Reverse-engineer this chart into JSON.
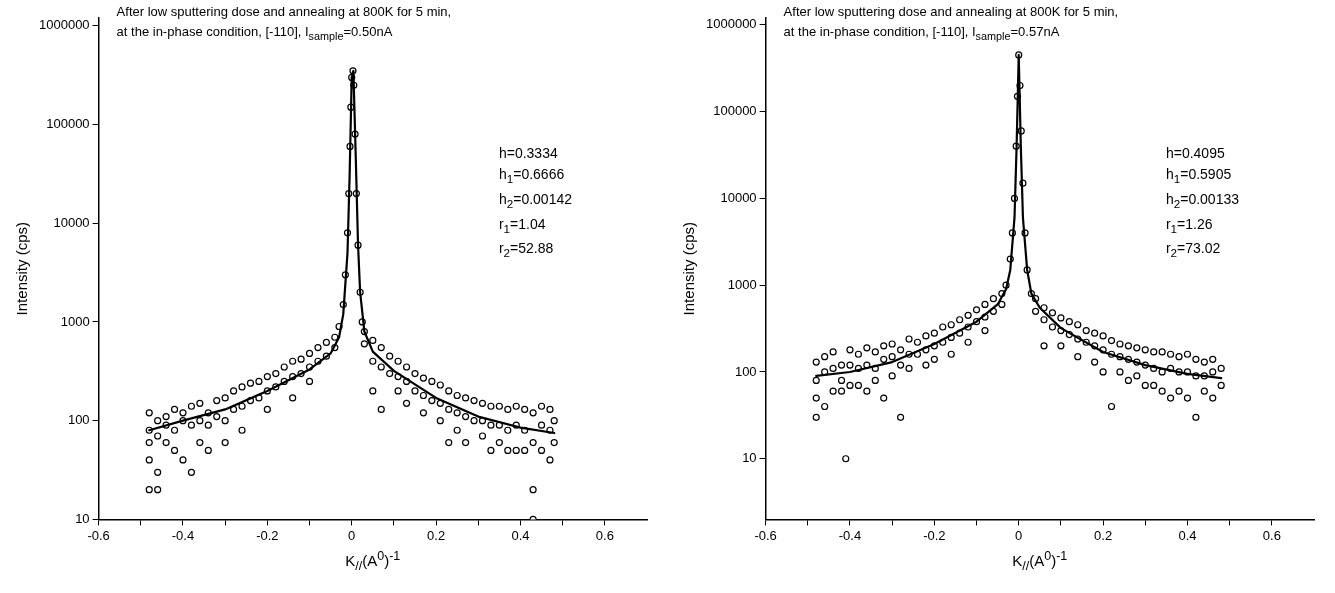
{
  "chart_data": [
    {
      "type": "scatter",
      "title": "After low sputtering dose and annealing at 800K for 5 min,",
      "subtitle": "at the in-phase condition, [-110], I$_{sample}$=0.50nA",
      "xlabel": "K$_{//}$(A$^{0}$)$^{-1}$",
      "ylabel": "Intensity (cps)",
      "log": "y",
      "grid": false,
      "legend": false,
      "annotations": [
        "h=0.3334",
        "h$_{1}$=0.6666",
        "h$_{2}$=0.00142",
        "r$_{1}$=1.04",
        "r$_{2}$=52.88"
      ],
      "xlim": [
        -0.6,
        0.7
      ],
      "xticks": [
        -0.6,
        {
          "value": -0.5,
          "label": null
        },
        -0.4,
        {
          "value": -0.3,
          "label": null
        },
        -0.2,
        {
          "value": -0.1,
          "label": null
        },
        0.0,
        {
          "value": 0.1,
          "label": null
        },
        0.2,
        {
          "value": 0.3,
          "label": null
        },
        0.4,
        {
          "value": 0.5,
          "label": null
        },
        0.6
      ],
      "ylim": [
        10,
        1200000
      ],
      "yticks": [
        10,
        100,
        1000,
        10000,
        100000,
        1000000
      ],
      "series": [
        {
          "type": "scatter",
          "marker": "circle",
          "color": "#000000",
          "x": [
            -0.48,
            -0.48,
            -0.48,
            -0.48,
            -0.48,
            -0.46,
            -0.46,
            -0.46,
            -0.46,
            -0.44,
            -0.44,
            -0.44,
            -0.42,
            -0.42,
            -0.42,
            -0.4,
            -0.4,
            -0.4,
            -0.38,
            -0.38,
            -0.38,
            -0.36,
            -0.36,
            -0.36,
            -0.34,
            -0.34,
            -0.34,
            -0.32,
            -0.32,
            -0.3,
            -0.3,
            -0.3,
            -0.28,
            -0.28,
            -0.26,
            -0.26,
            -0.26,
            -0.24,
            -0.24,
            -0.22,
            -0.22,
            -0.2,
            -0.2,
            -0.2,
            -0.18,
            -0.18,
            -0.16,
            -0.16,
            -0.14,
            -0.14,
            -0.14,
            -0.12,
            -0.12,
            -0.1,
            -0.1,
            -0.1,
            -0.08,
            -0.08,
            -0.06,
            -0.06,
            -0.04,
            -0.04,
            -0.03,
            -0.02,
            -0.015,
            -0.01,
            -0.007,
            -0.004,
            -0.002,
            0.0,
            0.003,
            0.005,
            0.008,
            0.011,
            0.015,
            0.02,
            0.025,
            0.03,
            0.03,
            0.05,
            0.05,
            0.05,
            0.07,
            0.07,
            0.07,
            0.09,
            0.09,
            0.11,
            0.11,
            0.11,
            0.13,
            0.13,
            0.13,
            0.15,
            0.15,
            0.17,
            0.17,
            0.17,
            0.19,
            0.19,
            0.21,
            0.21,
            0.21,
            0.23,
            0.23,
            0.23,
            0.25,
            0.25,
            0.25,
            0.27,
            0.27,
            0.27,
            0.29,
            0.29,
            0.31,
            0.31,
            0.31,
            0.33,
            0.33,
            0.33,
            0.35,
            0.35,
            0.35,
            0.37,
            0.37,
            0.37,
            0.39,
            0.39,
            0.39,
            0.41,
            0.41,
            0.41,
            0.43,
            0.43,
            0.43,
            0.43,
            0.45,
            0.45,
            0.45,
            0.47,
            0.47,
            0.47,
            0.48,
            0.48
          ],
          "values": [
            80,
            120,
            60,
            40,
            20,
            100,
            70,
            30,
            20,
            110,
            90,
            60,
            130,
            80,
            50,
            120,
            100,
            40,
            140,
            90,
            30,
            150,
            100,
            60,
            120,
            90,
            50,
            160,
            110,
            170,
            100,
            60,
            200,
            130,
            220,
            140,
            80,
            240,
            160,
            250,
            170,
            280,
            200,
            130,
            300,
            220,
            350,
            250,
            400,
            280,
            170,
            420,
            300,
            480,
            350,
            250,
            550,
            400,
            620,
            450,
            700,
            550,
            900,
            1500,
            3000,
            8000,
            20000,
            60000,
            150000,
            300000,
            350000,
            250000,
            80000,
            20000,
            6000,
            2000,
            1000,
            800,
            600,
            650,
            400,
            200,
            550,
            350,
            130,
            450,
            300,
            400,
            280,
            200,
            350,
            250,
            150,
            300,
            200,
            270,
            180,
            120,
            250,
            160,
            230,
            150,
            100,
            200,
            130,
            60,
            180,
            120,
            80,
            170,
            110,
            60,
            160,
            100,
            150,
            100,
            70,
            140,
            90,
            50,
            140,
            90,
            60,
            130,
            80,
            50,
            140,
            90,
            50,
            130,
            80,
            50,
            120,
            60,
            20,
            10,
            140,
            90,
            50,
            130,
            80,
            40,
            100,
            60
          ]
        },
        {
          "type": "line",
          "marker": "none",
          "color": "#000000",
          "x": [
            -0.48,
            -0.4,
            -0.3,
            -0.2,
            -0.1,
            -0.05,
            -0.03,
            -0.02,
            -0.01,
            -0.005,
            0.0,
            0.004,
            0.01,
            0.015,
            0.02,
            0.03,
            0.05,
            0.1,
            0.2,
            0.3,
            0.4,
            0.48
          ],
          "values": [
            80,
            100,
            130,
            200,
            330,
            480,
            700,
            1200,
            5000,
            30000,
            300000,
            350000,
            40000,
            6000,
            2000,
            800,
            500,
            320,
            170,
            110,
            85,
            75
          ]
        }
      ]
    },
    {
      "type": "scatter",
      "title": "After low sputtering dose and annealing at 800K for 5 min,",
      "subtitle": "at the in-phase condition, [-110], I$_{sample}$=0.57nA",
      "xlabel": "K$_{//}$(A$^{0}$)$^{-1}$",
      "ylabel": "Intensity (cps)",
      "log": "y",
      "grid": false,
      "legend": false,
      "annotations": [
        "h=0.4095",
        "h$_{1}$=0.5905",
        "h$_{2}$=0.00133",
        "r$_{1}$=1.26",
        "r$_{2}$=73.02"
      ],
      "xlim": [
        -0.6,
        0.7
      ],
      "xticks": [
        -0.6,
        {
          "value": -0.5,
          "label": null
        },
        -0.4,
        {
          "value": -0.3,
          "label": null
        },
        -0.2,
        {
          "value": -0.1,
          "label": null
        },
        0.0,
        {
          "value": 0.1,
          "label": null
        },
        0.2,
        {
          "value": 0.3,
          "label": null
        },
        0.4,
        {
          "value": 0.5,
          "label": null
        },
        0.6
      ],
      "ylim": [
        2,
        1200000
      ],
      "yticks": [
        10,
        100,
        1000,
        10000,
        100000,
        1000000
      ],
      "series": [
        {
          "type": "scatter",
          "marker": "circle",
          "color": "#000000",
          "x": [
            -0.48,
            -0.48,
            -0.48,
            -0.48,
            -0.46,
            -0.46,
            -0.46,
            -0.44,
            -0.44,
            -0.44,
            -0.42,
            -0.42,
            -0.42,
            -0.41,
            -0.4,
            -0.4,
            -0.4,
            -0.38,
            -0.38,
            -0.38,
            -0.36,
            -0.36,
            -0.36,
            -0.34,
            -0.34,
            -0.34,
            -0.32,
            -0.32,
            -0.32,
            -0.3,
            -0.3,
            -0.3,
            -0.28,
            -0.28,
            -0.28,
            -0.26,
            -0.26,
            -0.26,
            -0.24,
            -0.24,
            -0.22,
            -0.22,
            -0.22,
            -0.2,
            -0.2,
            -0.2,
            -0.18,
            -0.18,
            -0.16,
            -0.16,
            -0.16,
            -0.14,
            -0.14,
            -0.12,
            -0.12,
            -0.12,
            -0.1,
            -0.1,
            -0.08,
            -0.08,
            -0.08,
            -0.06,
            -0.06,
            -0.04,
            -0.04,
            -0.03,
            -0.02,
            -0.015,
            -0.01,
            -0.006,
            -0.003,
            0.0,
            0.003,
            0.006,
            0.01,
            0.015,
            0.02,
            0.03,
            0.04,
            0.04,
            0.06,
            0.06,
            0.06,
            0.08,
            0.08,
            0.1,
            0.1,
            0.1,
            0.12,
            0.12,
            0.14,
            0.14,
            0.14,
            0.16,
            0.16,
            0.18,
            0.18,
            0.18,
            0.2,
            0.2,
            0.2,
            0.22,
            0.22,
            0.22,
            0.24,
            0.24,
            0.24,
            0.26,
            0.26,
            0.26,
            0.28,
            0.28,
            0.28,
            0.3,
            0.3,
            0.3,
            0.32,
            0.32,
            0.32,
            0.34,
            0.34,
            0.34,
            0.36,
            0.36,
            0.36,
            0.38,
            0.38,
            0.38,
            0.4,
            0.4,
            0.4,
            0.42,
            0.42,
            0.42,
            0.44,
            0.44,
            0.44,
            0.46,
            0.46,
            0.46,
            0.48,
            0.48
          ],
          "values": [
            130,
            80,
            50,
            30,
            150,
            100,
            40,
            170,
            110,
            60,
            120,
            80,
            60,
            10,
            180,
            120,
            70,
            160,
            110,
            70,
            190,
            120,
            60,
            170,
            110,
            80,
            200,
            140,
            50,
            210,
            150,
            90,
            180,
            120,
            30,
            240,
            160,
            110,
            220,
            160,
            260,
            180,
            120,
            280,
            200,
            140,
            330,
            220,
            350,
            250,
            160,
            400,
            280,
            450,
            330,
            220,
            520,
            380,
            600,
            430,
            300,
            700,
            500,
            800,
            600,
            1000,
            2000,
            4000,
            10000,
            40000,
            150000,
            450000,
            200000,
            60000,
            15000,
            4000,
            1500,
            800,
            700,
            500,
            550,
            400,
            200,
            480,
            330,
            420,
            300,
            200,
            380,
            270,
            350,
            240,
            150,
            300,
            220,
            280,
            200,
            130,
            260,
            180,
            100,
            230,
            160,
            40,
            210,
            150,
            100,
            200,
            140,
            80,
            190,
            130,
            90,
            180,
            120,
            70,
            170,
            110,
            70,
            170,
            100,
            60,
            160,
            110,
            50,
            150,
            100,
            60,
            160,
            100,
            50,
            140,
            90,
            30,
            130,
            90,
            60,
            140,
            100,
            50,
            110,
            70
          ]
        },
        {
          "type": "line",
          "marker": "none",
          "color": "#000000",
          "x": [
            -0.48,
            -0.4,
            -0.3,
            -0.2,
            -0.1,
            -0.05,
            -0.03,
            -0.02,
            -0.01,
            -0.005,
            0.0,
            0.005,
            0.01,
            0.02,
            0.03,
            0.05,
            0.1,
            0.2,
            0.3,
            0.4,
            0.48
          ],
          "values": [
            90,
            100,
            130,
            210,
            380,
            600,
            900,
            1500,
            6000,
            40000,
            450000,
            40000,
            6000,
            1500,
            800,
            550,
            320,
            170,
            120,
            95,
            85
          ]
        }
      ]
    }
  ]
}
